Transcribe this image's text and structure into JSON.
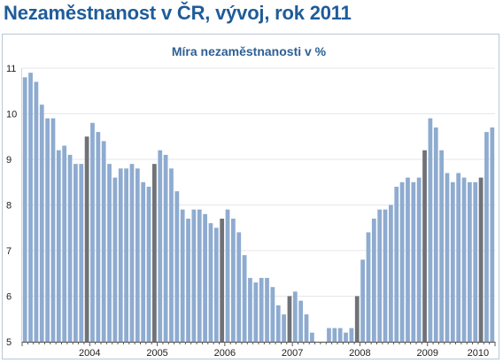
{
  "page": {
    "title": "Nezaměstnanost v ČR, vývoj, rok 2011"
  },
  "colors": {
    "title": "#1f5c99",
    "chart_title": "#2d5f93",
    "bar": "#8eabd0",
    "bar_highlight": "#6f7378",
    "grid": "#e3e7ec",
    "axis": "#555555"
  },
  "chart_data": {
    "type": "bar",
    "title": "Míra nezaměstnanosti v %",
    "xlabel": "",
    "ylabel": "",
    "ylim": [
      5,
      11
    ],
    "yticks": [
      5,
      6,
      7,
      8,
      9,
      10,
      11
    ],
    "grid": true,
    "legend": "none",
    "year_labels": [
      "2004",
      "2005",
      "2006",
      "2007",
      "2008",
      "2009",
      "2010"
    ],
    "note": "",
    "values": [
      10.8,
      10.9,
      10.7,
      10.2,
      9.9,
      9.9,
      9.2,
      9.3,
      9.1,
      8.9,
      8.9,
      9.5,
      9.8,
      9.6,
      9.4,
      8.9,
      8.6,
      8.8,
      8.8,
      8.9,
      8.8,
      8.5,
      8.4,
      8.9,
      9.2,
      9.1,
      8.8,
      8.3,
      7.9,
      7.7,
      7.9,
      7.9,
      7.8,
      7.6,
      7.5,
      7.7,
      7.9,
      7.7,
      7.4,
      6.9,
      6.4,
      6.3,
      6.4,
      6.4,
      6.2,
      5.8,
      5.6,
      6.0,
      6.1,
      5.9,
      5.6,
      5.2,
      5.0,
      5.0,
      5.3,
      5.3,
      5.3,
      5.2,
      5.3,
      6.0,
      6.8,
      7.4,
      7.7,
      7.9,
      7.9,
      8.0,
      8.4,
      8.5,
      8.6,
      8.5,
      8.6,
      9.2,
      9.9,
      9.7,
      9.2,
      8.7,
      8.5,
      8.7,
      8.6,
      8.5,
      8.5,
      8.6,
      9.6,
      9.7
    ],
    "highlight_indices": [
      11,
      23,
      35,
      47,
      59,
      71,
      81
    ]
  }
}
